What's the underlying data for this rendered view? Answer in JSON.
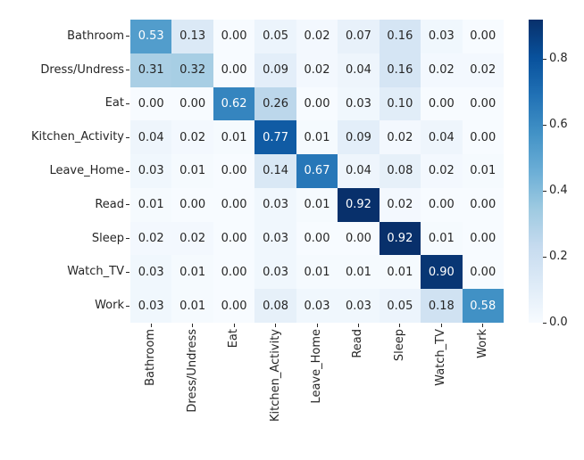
{
  "chart_data": {
    "type": "heatmap",
    "title": "",
    "xlabel": "",
    "ylabel": "",
    "x_labels": [
      "Bathroom",
      "Dress/Undress",
      "Eat",
      "Kitchen_Activity",
      "Leave_Home",
      "Read",
      "Sleep",
      "Watch_TV",
      "Work"
    ],
    "y_labels": [
      "Bathroom",
      "Dress/Undress",
      "Eat",
      "Kitchen_Activity",
      "Leave_Home",
      "Read",
      "Sleep",
      "Watch_TV",
      "Work"
    ],
    "values": [
      [
        0.53,
        0.13,
        0.0,
        0.05,
        0.02,
        0.07,
        0.16,
        0.03,
        0.0
      ],
      [
        0.31,
        0.32,
        0.0,
        0.09,
        0.02,
        0.04,
        0.16,
        0.02,
        0.02
      ],
      [
        0.0,
        0.0,
        0.62,
        0.26,
        0.0,
        0.03,
        0.1,
        0.0,
        0.0
      ],
      [
        0.04,
        0.02,
        0.01,
        0.77,
        0.01,
        0.09,
        0.02,
        0.04,
        0.0
      ],
      [
        0.03,
        0.01,
        0.0,
        0.14,
        0.67,
        0.04,
        0.08,
        0.02,
        0.01
      ],
      [
        0.01,
        0.0,
        0.0,
        0.03,
        0.01,
        0.92,
        0.02,
        0.0,
        0.0
      ],
      [
        0.02,
        0.02,
        0.0,
        0.03,
        0.0,
        0.0,
        0.92,
        0.01,
        0.0
      ],
      [
        0.03,
        0.01,
        0.0,
        0.03,
        0.01,
        0.01,
        0.01,
        0.9,
        0.0
      ],
      [
        0.03,
        0.01,
        0.0,
        0.08,
        0.03,
        0.03,
        0.05,
        0.18,
        0.58
      ]
    ],
    "value_decimals": 2,
    "vmin": 0.0,
    "vmax": 0.92,
    "colormap": "Blues",
    "colormap_stops": [
      "#f7fbff",
      "#deebf7",
      "#c6dbef",
      "#9ecae1",
      "#6baed6",
      "#4292c6",
      "#2171b5",
      "#08519c",
      "#08306b"
    ],
    "annotation_color_dark": "#262626",
    "annotation_color_light": "#ffffff",
    "tick_color": "#262626",
    "background": "#ffffff",
    "colorbar": {
      "position": "right",
      "tick_values": [
        0.0,
        0.2,
        0.4,
        0.6,
        0.8
      ],
      "tick_labels": [
        "0.0",
        "0.2",
        "0.4",
        "0.6",
        "0.8"
      ]
    },
    "grid": false,
    "legend": false
  }
}
